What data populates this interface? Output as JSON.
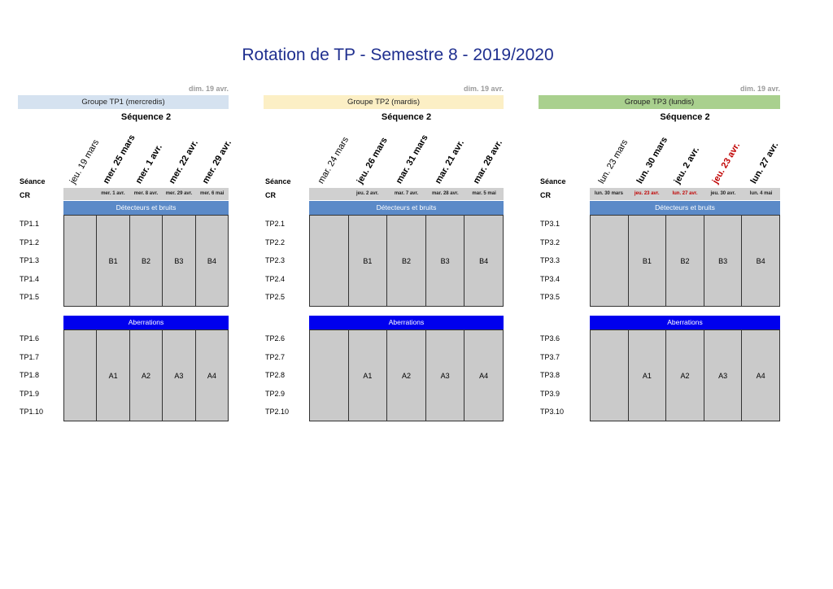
{
  "title": "Rotation de TP - Semestre 8 - 2019/2020",
  "labels": {
    "seance": "Séance",
    "cr": "CR"
  },
  "groups": [
    {
      "dim": "dim. 19 avr.",
      "name": "Groupe TP1 (mercredis)",
      "name_color": "#d5e2f0",
      "sequence": "Séquence 2",
      "dates": [
        {
          "text": "jeu. 19 mars",
          "style": "normal"
        },
        {
          "text": "mer. 25 mars",
          "style": "bold"
        },
        {
          "text": "mer. 1 avr.",
          "style": "bold"
        },
        {
          "text": "mer. 22 avr.",
          "style": "bold"
        },
        {
          "text": "mer. 29 avr.",
          "style": "bold"
        }
      ],
      "cr": [
        {
          "text": "",
          "style": "normal"
        },
        {
          "text": "mer. 1 avr.",
          "style": "normal"
        },
        {
          "text": "mer. 8 avr.",
          "style": "normal"
        },
        {
          "text": "mer. 29 avr.",
          "style": "normal"
        },
        {
          "text": "mer. 6 mai",
          "style": "normal"
        }
      ],
      "block1": {
        "label": "Détecteurs et bruits",
        "color": "#5b8ac8",
        "rows": [
          "TP1.1",
          "TP1.2",
          "TP1.3",
          "TP1.4",
          "TP1.5"
        ],
        "cells": [
          "",
          "B1",
          "B2",
          "B3",
          "B4"
        ]
      },
      "block2": {
        "label": "Aberrations",
        "color": "#0000ee",
        "rows": [
          "TP1.6",
          "TP1.7",
          "TP1.8",
          "TP1.9",
          "TP1.10"
        ],
        "cells": [
          "",
          "A1",
          "A2",
          "A3",
          "A4"
        ]
      }
    },
    {
      "dim": "dim. 19 avr.",
      "name": "Groupe TP2 (mardis)",
      "name_color": "#fcefc5",
      "sequence": "Séquence 2",
      "dates": [
        {
          "text": "mar. 24 mars",
          "style": "normal"
        },
        {
          "text": "jeu. 26 mars",
          "style": "bold"
        },
        {
          "text": "mar. 31 mars",
          "style": "bold"
        },
        {
          "text": "mar. 21 avr.",
          "style": "bold"
        },
        {
          "text": "mar. 28 avr.",
          "style": "bold"
        }
      ],
      "cr": [
        {
          "text": "",
          "style": "normal"
        },
        {
          "text": "jeu. 2 avr.",
          "style": "normal"
        },
        {
          "text": "mar. 7 avr.",
          "style": "normal"
        },
        {
          "text": "mar. 28 avr.",
          "style": "normal"
        },
        {
          "text": "mar. 5 mai",
          "style": "normal"
        }
      ],
      "block1": {
        "label": "Détecteurs et bruits",
        "color": "#5b8ac8",
        "rows": [
          "TP2.1",
          "TP2.2",
          "TP2.3",
          "TP2.4",
          "TP2.5"
        ],
        "cells": [
          "",
          "B1",
          "B2",
          "B3",
          "B4"
        ]
      },
      "block2": {
        "label": "Aberrations",
        "color": "#0000ee",
        "rows": [
          "TP2.6",
          "TP2.7",
          "TP2.8",
          "TP2.9",
          "TP2.10"
        ],
        "cells": [
          "",
          "A1",
          "A2",
          "A3",
          "A4"
        ]
      }
    },
    {
      "dim": "dim. 19 avr.",
      "name": "Groupe TP3 (lundis)",
      "name_color": "#a9d08e",
      "sequence": "Séquence 2",
      "dates": [
        {
          "text": "lun. 23 mars",
          "style": "normal"
        },
        {
          "text": "lun. 30 mars",
          "style": "bold"
        },
        {
          "text": "jeu. 2 avr.",
          "style": "bold"
        },
        {
          "text": "jeu. 23 avr.",
          "style": "red"
        },
        {
          "text": "lun. 27 avr.",
          "style": "bold"
        }
      ],
      "cr": [
        {
          "text": "lun. 30 mars",
          "style": "normal"
        },
        {
          "text": "jeu. 23 avr.",
          "style": "red"
        },
        {
          "text": "lun. 27 avr.",
          "style": "red"
        },
        {
          "text": "jeu. 30 avr.",
          "style": "normal"
        },
        {
          "text": "lun. 4 mai",
          "style": "normal"
        }
      ],
      "block1": {
        "label": "Détecteurs et bruits",
        "color": "#5b8ac8",
        "rows": [
          "TP3.1",
          "TP3.2",
          "TP3.3",
          "TP3.4",
          "TP3.5"
        ],
        "cells": [
          "",
          "B1",
          "B2",
          "B3",
          "B4"
        ]
      },
      "block2": {
        "label": "Aberrations",
        "color": "#0000ee",
        "rows": [
          "TP3.6",
          "TP3.7",
          "TP3.8",
          "TP3.9",
          "TP3.10"
        ],
        "cells": [
          "",
          "A1",
          "A2",
          "A3",
          "A4"
        ]
      }
    }
  ]
}
